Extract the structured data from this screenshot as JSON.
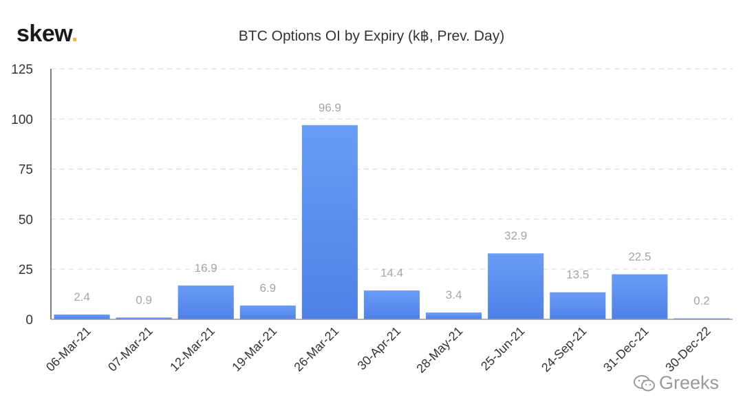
{
  "logo": {
    "text": "skew",
    "dot": "."
  },
  "watermark": {
    "icon": "wechat-icon",
    "text": "Greeks"
  },
  "colors": {
    "bar_top": "#6a9cf6",
    "bar_bottom": "#4f80e8",
    "label": "#a5a5a5",
    "grid": "#dddddd",
    "axis_text": "#333333"
  },
  "chart_data": {
    "type": "bar",
    "title": "BTC Options OI by Expiry (k฿, Prev. Day)",
    "xlabel": "",
    "ylabel": "",
    "categories": [
      "06-Mar-21",
      "07-Mar-21",
      "12-Mar-21",
      "19-Mar-21",
      "26-Mar-21",
      "30-Apr-21",
      "28-May-21",
      "25-Jun-21",
      "24-Sep-21",
      "31-Dec-21",
      "30-Dec-22"
    ],
    "values": [
      2.4,
      0.9,
      16.9,
      6.9,
      96.9,
      14.4,
      3.4,
      32.9,
      13.5,
      22.5,
      0.2
    ],
    "data_labels": [
      "2.4",
      "0.9",
      "16.9",
      "6.9",
      "96.9",
      "14.4",
      "3.4",
      "32.9",
      "13.5",
      "22.5",
      "0.2"
    ],
    "ylim": [
      0,
      125
    ],
    "yticks": [
      "0",
      "25",
      "50",
      "75",
      "100",
      "125"
    ],
    "ytick_values": [
      0,
      25,
      50,
      75,
      100,
      125
    ],
    "grid": true,
    "legend": "none"
  }
}
